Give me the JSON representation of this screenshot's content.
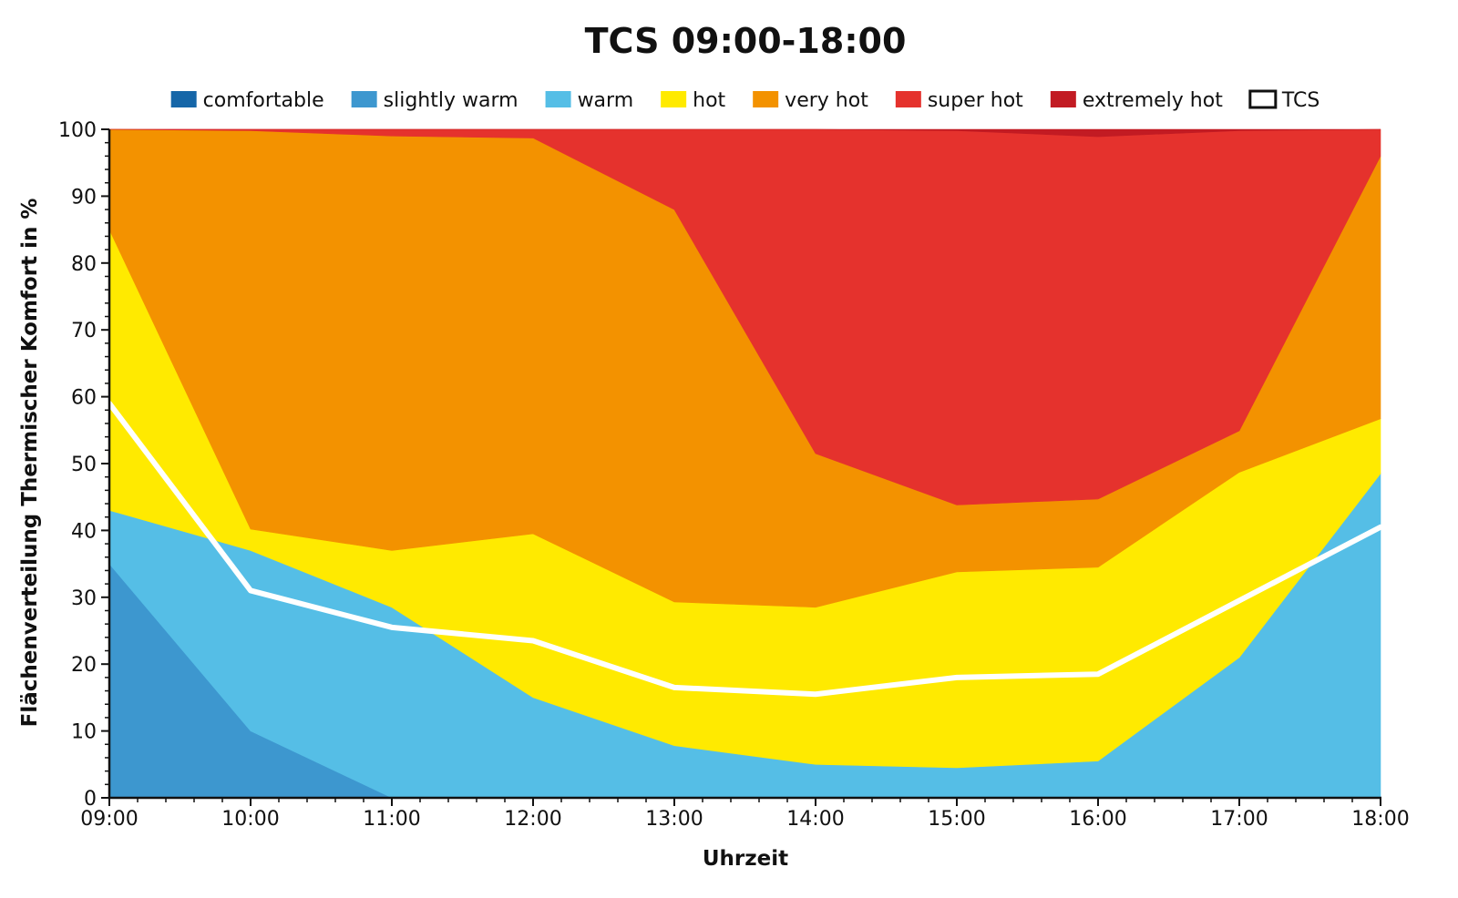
{
  "chart_data": {
    "type": "area",
    "stacked": true,
    "title": "TCS 09:00-18:00",
    "xlabel": "Uhrzeit",
    "ylabel": "Flächenverteilung Thermischer Komfort in %",
    "ylim": [
      0,
      100
    ],
    "yticks": [
      0,
      10,
      20,
      30,
      40,
      50,
      60,
      70,
      80,
      90,
      100
    ],
    "x": [
      "09:00",
      "10:00",
      "11:00",
      "12:00",
      "13:00",
      "14:00",
      "15:00",
      "16:00",
      "17:00",
      "18:00"
    ],
    "legend_position": "top",
    "series": [
      {
        "name": "comfortable",
        "color": "#1566a8",
        "values": [
          0,
          0,
          0,
          0,
          0,
          0,
          0,
          0,
          0,
          0
        ]
      },
      {
        "name": "slightly warm",
        "color": "#3d97cf",
        "values": [
          35,
          10,
          0,
          0,
          0,
          0,
          0,
          0,
          0,
          0
        ]
      },
      {
        "name": "warm",
        "color": "#55bee6",
        "values": [
          8,
          27,
          28.5,
          15,
          7.8,
          5,
          4.5,
          5.5,
          21,
          48.5
        ]
      },
      {
        "name": "hot",
        "color": "#ffea00",
        "values": [
          42,
          3.2,
          8.5,
          24.5,
          21.5,
          23.5,
          29.3,
          29,
          27.7,
          8.2
        ]
      },
      {
        "name": "very hot",
        "color": "#f39200",
        "values": [
          15,
          59.6,
          62,
          59.2,
          58.7,
          23,
          10,
          10.2,
          6.2,
          39.3
        ]
      },
      {
        "name": "super hot",
        "color": "#e5322d",
        "values": [
          0,
          0.2,
          1,
          1.3,
          12,
          48.5,
          56,
          54.2,
          44.9,
          4
        ]
      },
      {
        "name": "extremely hot",
        "color": "#c21b23",
        "values": [
          0,
          0,
          0,
          0,
          0,
          0,
          0.2,
          1.1,
          0.2,
          0
        ]
      }
    ],
    "line_series": {
      "name": "TCS",
      "color": "#ffffff",
      "values": [
        59,
        31,
        25.5,
        23.5,
        16.5,
        15.5,
        18,
        18.5,
        29.5,
        40.5
      ]
    }
  }
}
